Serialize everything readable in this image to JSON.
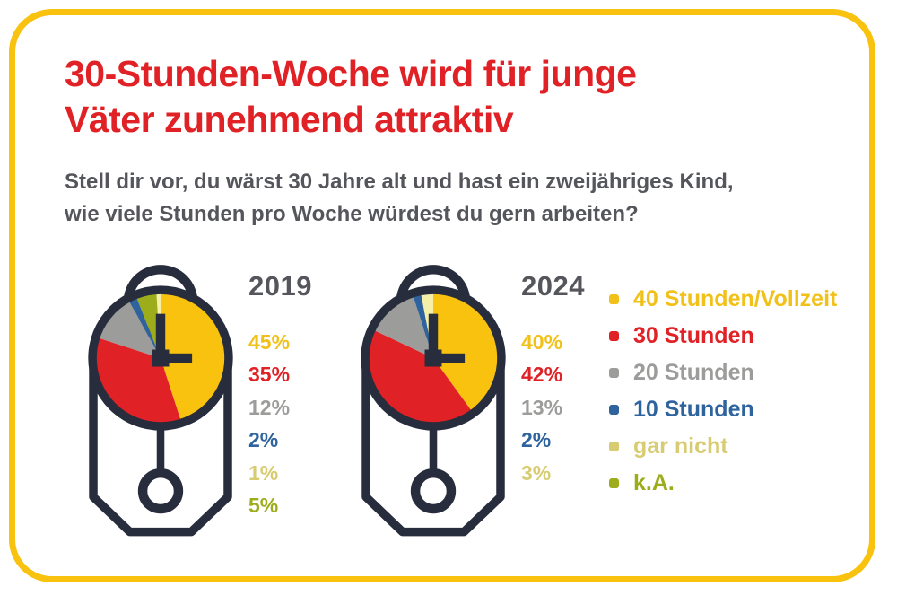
{
  "header": {
    "title_lines": [
      "30-Stunden-Woche wird für junge",
      "Väter zunehmend attraktiv"
    ],
    "subtitle_lines": [
      "Stell dir vor, du wärst 30 Jahre alt und hast  ein zweijähriges Kind,",
      "wie viele Stunden pro Woche würdest du gern arbeiten?"
    ]
  },
  "colors": {
    "title_red": "#E02226",
    "text_dark_gray": "#55565B",
    "clock_outline_dark": "#272D3C",
    "card_border_yellow": "#F9C20F"
  },
  "chart_data": [
    {
      "type": "pie",
      "title": "2019",
      "year": "2019",
      "categories": [
        "40 Stunden/Vollzeit",
        "30 Stunden",
        "20 Stunden",
        "10 Stunden",
        "gar nicht",
        "k.A."
      ],
      "values": [
        45,
        35,
        12,
        2,
        1,
        5
      ],
      "value_labels": [
        "45%",
        "35%",
        "12%",
        "2%",
        "1%",
        "5%"
      ],
      "slice_colors": [
        "#F9C20F",
        "#E02226",
        "#9C9C9B",
        "#2E639E",
        "#F5EFA8",
        "#9CAC1A"
      ],
      "label_colors": [
        "#F2C119",
        "#E02226",
        "#9C9C9B",
        "#2E639E",
        "#D8CC72",
        "#9CAC1A"
      ],
      "clockwise_from_12_order": [
        0,
        1,
        2,
        3,
        5,
        4
      ],
      "legend_position": "right"
    },
    {
      "type": "pie",
      "title": "2024",
      "year": "2024",
      "categories": [
        "40 Stunden/Vollzeit",
        "30 Stunden",
        "20 Stunden",
        "10 Stunden",
        "gar nicht"
      ],
      "values": [
        40,
        42,
        13,
        2,
        3
      ],
      "value_labels": [
        "40%",
        "42%",
        "13%",
        "2%",
        "3%"
      ],
      "slice_colors": [
        "#F9C20F",
        "#E02226",
        "#9C9C9B",
        "#2E639E",
        "#F5EFA8"
      ],
      "label_colors": [
        "#F2C119",
        "#E02226",
        "#9C9C9B",
        "#2E639E",
        "#D8CC72"
      ],
      "clockwise_from_12_order": [
        0,
        1,
        2,
        3,
        4
      ],
      "legend_position": "right"
    }
  ],
  "legend": {
    "items": [
      {
        "label": "40 Stunden/Vollzeit",
        "color": "#F2C119"
      },
      {
        "label": "30 Stunden",
        "color": "#E02226"
      },
      {
        "label": "20 Stunden",
        "color": "#9C9C9B"
      },
      {
        "label": "10 Stunden",
        "color": "#2E639E"
      },
      {
        "label": "gar nicht",
        "color": "#D8CC72"
      },
      {
        "label": "k.A.",
        "color": "#9CAC1A"
      }
    ]
  }
}
